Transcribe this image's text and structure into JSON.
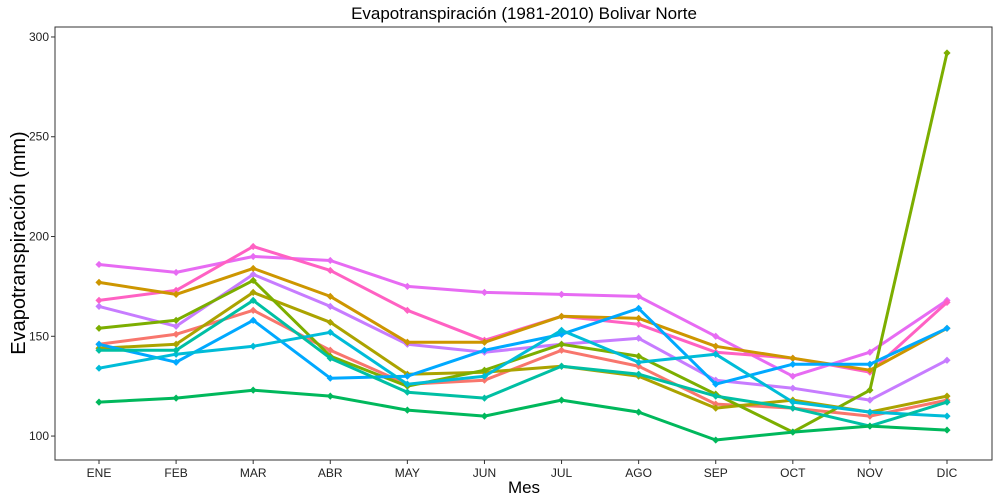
{
  "chart_data": {
    "type": "line",
    "title": "Evapotranspiración (1981-2010)  Bolivar Norte",
    "xlabel": "Mes",
    "ylabel": "Evapotranspiración (mm)",
    "categories": [
      "ENE",
      "FEB",
      "MAR",
      "ABR",
      "MAY",
      "JUN",
      "JUL",
      "AGO",
      "SEP",
      "OCT",
      "NOV",
      "DIC"
    ],
    "yticks": [
      100,
      150,
      200,
      250,
      300
    ],
    "ylim": [
      88,
      305
    ],
    "grid": false,
    "legend": "none",
    "series": [
      {
        "color": "#e76bf3",
        "values": [
          186,
          182,
          190,
          188,
          175,
          172,
          171,
          170,
          150,
          130,
          142,
          168
        ]
      },
      {
        "color": "#ff61c3",
        "values": [
          168,
          173,
          195,
          183,
          163,
          148,
          160,
          156,
          142,
          139,
          132,
          167
        ]
      },
      {
        "color": "#c77cff",
        "values": [
          165,
          155,
          181,
          165,
          146,
          142,
          146,
          149,
          128,
          124,
          118,
          138
        ]
      },
      {
        "color": "#f8766d",
        "values": [
          146,
          151,
          163,
          143,
          126,
          128,
          143,
          135,
          116,
          114,
          110,
          118
        ]
      },
      {
        "color": "#cd9600",
        "values": [
          177,
          171,
          184,
          170,
          147,
          147,
          160,
          159,
          145,
          139,
          133,
          154
        ]
      },
      {
        "color": "#aba300",
        "values": [
          144,
          146,
          172,
          157,
          131,
          132,
          135,
          130,
          114,
          118,
          112,
          120
        ]
      },
      {
        "color": "#7cae00",
        "values": [
          154,
          158,
          178,
          140,
          125,
          133,
          146,
          140,
          121,
          102,
          123,
          292
        ]
      },
      {
        "color": "#00a9ff",
        "values": [
          146,
          137,
          158,
          129,
          130,
          143,
          151,
          164,
          126,
          136,
          136,
          154
        ]
      },
      {
        "color": "#00bcd8",
        "values": [
          134,
          141,
          145,
          152,
          126,
          130,
          153,
          137,
          141,
          117,
          112,
          110
        ]
      },
      {
        "color": "#00bfa4",
        "values": [
          143,
          143,
          168,
          139,
          122,
          119,
          135,
          131,
          120,
          114,
          105,
          117
        ]
      },
      {
        "color": "#00b85c",
        "values": [
          117,
          119,
          123,
          120,
          113,
          110,
          118,
          112,
          98,
          102,
          105,
          103
        ]
      }
    ]
  }
}
